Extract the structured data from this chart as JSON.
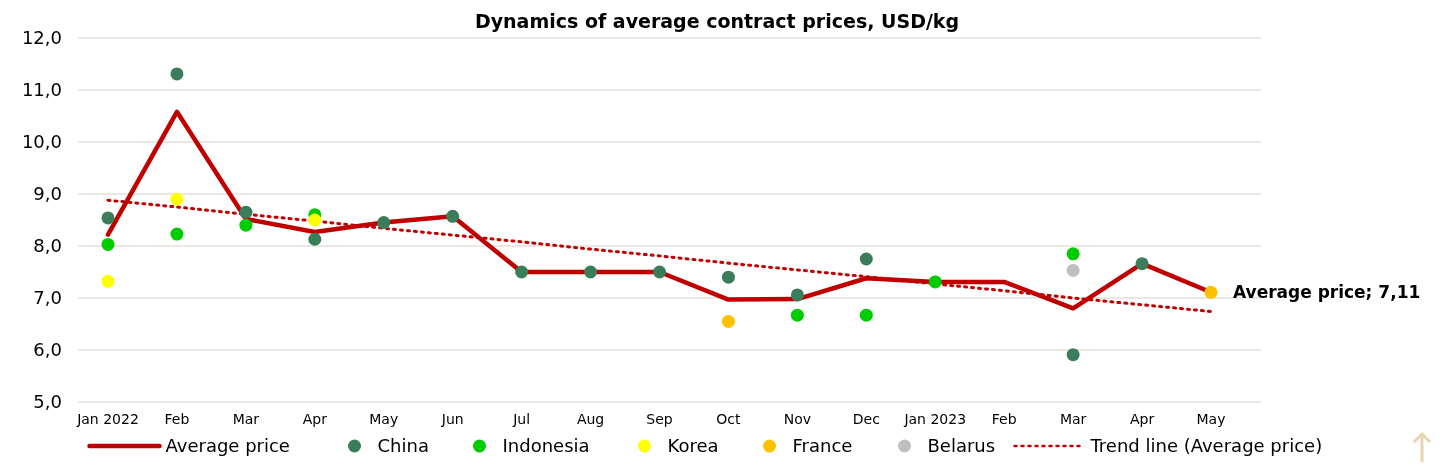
{
  "chart_data": {
    "type": "line",
    "title": "Dynamics of average contract prices, USD/kg",
    "categories": [
      "Jan 2022",
      "Feb",
      "Mar",
      "Apr",
      "May",
      "Jun",
      "Jul",
      "Aug",
      "Sep",
      "Oct",
      "Nov",
      "Dec",
      "Jan 2023",
      "Feb",
      "Mar",
      "Apr",
      "May"
    ],
    "series": [
      {
        "name": "Average price",
        "color": "#c00000",
        "line_style": "solid",
        "values": [
          8.22,
          10.58,
          8.52,
          8.27,
          8.45,
          8.57,
          7.5,
          7.5,
          7.5,
          6.97,
          6.98,
          7.38,
          7.31,
          7.31,
          6.8,
          7.66,
          7.11
        ]
      },
      {
        "name": "China",
        "type": "scatter",
        "color": "#3a7d5a",
        "marker": "circle",
        "values": [
          8.54,
          11.31,
          8.65,
          8.13,
          8.45,
          8.57,
          7.5,
          7.5,
          7.5,
          7.4,
          7.06,
          7.75,
          null,
          null,
          5.91,
          7.66,
          null
        ]
      },
      {
        "name": "Indonesia",
        "type": "scatter",
        "color": "#00cc00",
        "marker": "circle",
        "values": [
          8.03,
          8.23,
          8.4,
          8.6,
          null,
          null,
          null,
          null,
          null,
          null,
          6.67,
          6.67,
          7.31,
          null,
          7.85,
          null,
          null
        ]
      },
      {
        "name": "Korea",
        "type": "scatter",
        "color": "#ffff00",
        "marker": "circle",
        "values": [
          7.32,
          8.9,
          null,
          8.5,
          null,
          null,
          null,
          null,
          null,
          null,
          null,
          null,
          null,
          null,
          null,
          null,
          null
        ]
      },
      {
        "name": "France",
        "type": "scatter",
        "color": "#ffc000",
        "marker": "circle",
        "values": [
          null,
          null,
          null,
          null,
          null,
          null,
          null,
          null,
          null,
          6.55,
          null,
          null,
          null,
          null,
          null,
          null,
          7.11
        ]
      },
      {
        "name": "Belarus",
        "type": "scatter",
        "color": "#bfbfbf",
        "marker": "circle",
        "values": [
          null,
          null,
          null,
          null,
          null,
          null,
          null,
          null,
          null,
          null,
          null,
          null,
          null,
          null,
          7.53,
          null,
          null
        ]
      },
      {
        "name": "Trend line (Average price)",
        "type": "line",
        "color": "#c00000",
        "line_style": "dotted",
        "values": [
          8.88,
          8.75,
          8.61,
          8.48,
          8.34,
          8.21,
          8.08,
          7.94,
          7.81,
          7.67,
          7.54,
          7.41,
          7.27,
          7.14,
          7.0,
          6.87,
          6.74
        ]
      }
    ],
    "ylim": [
      5,
      12
    ],
    "yticks": [
      {
        "value": 5,
        "label": "5,0"
      },
      {
        "value": 6,
        "label": "6,0"
      },
      {
        "value": 7,
        "label": "7,0"
      },
      {
        "value": 8,
        "label": "8,0"
      },
      {
        "value": 9,
        "label": "9,0"
      },
      {
        "value": 10,
        "label": "10,0"
      },
      {
        "value": 11,
        "label": "11,0"
      },
      {
        "value": 12,
        "label": "12,0"
      }
    ],
    "grid": "y",
    "legend": "bottom",
    "annotations": [
      "Average price; 7,11"
    ]
  }
}
